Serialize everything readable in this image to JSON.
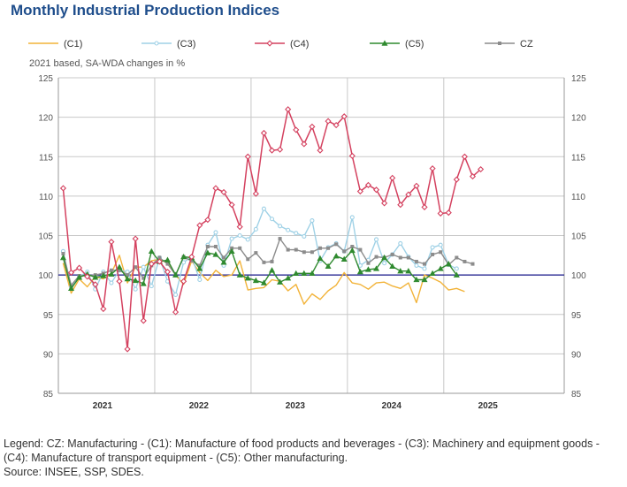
{
  "title": "Monthly Industrial Production Indices",
  "colors": {
    "C1": "#f2b339",
    "C3": "#9fd1e6",
    "C4": "#d4415f",
    "C5": "#2f8a2f",
    "CZ": "#8c8c8c",
    "baseline": "#1a1a8c",
    "grid": "#c8c8c8"
  },
  "footer": {
    "legend_text": "Legend: CZ: Manufacturing - (C1): Manufacture of food products and beverages - (C3): Machinery and equipment goods - (C4): Manufacture of transport equipment - (C5): Other manufacturing.",
    "source_text": "Source: INSEE, SSP, SDES."
  },
  "chart_data": {
    "type": "line",
    "title": "Monthly Industrial Production Indices",
    "subtitle": "2021 based, SA-WDA changes in %",
    "ylim": [
      85,
      125
    ],
    "yticks": [
      85,
      90,
      95,
      100,
      105,
      110,
      115,
      120,
      125
    ],
    "xlim": [
      0,
      63
    ],
    "year_labels": [
      {
        "label": "2021",
        "x": 5.5
      },
      {
        "label": "2022",
        "x": 17.5
      },
      {
        "label": "2023",
        "x": 29.5
      },
      {
        "label": "2024",
        "x": 41.5
      },
      {
        "label": "2025",
        "x": 53.5
      }
    ],
    "year_separators": [
      12,
      24,
      36,
      48
    ],
    "baseline": 100,
    "grid": true,
    "legend_position": "top",
    "series": [
      {
        "key": "C1",
        "name": "(C1)",
        "marker": "none",
        "values": [
          101.5,
          97.7,
          99.5,
          98.5,
          99.8,
          99.5,
          100.2,
          102.5,
          99.0,
          101.0,
          101.0,
          101.8,
          102.0,
          101.5,
          100.0,
          98.8,
          101.8,
          100.3,
          99.3,
          100.6,
          99.8,
          100.0,
          101.8,
          98.1,
          98.3,
          98.4,
          99.4,
          99.2,
          98.0,
          98.8,
          96.3,
          97.6,
          96.9,
          98.0,
          98.7,
          100.3,
          99.0,
          98.8,
          98.2,
          99.0,
          99.1,
          98.6,
          98.3,
          99.0,
          96.5,
          100.0,
          99.6,
          99.1,
          98.1,
          98.3,
          97.9
        ]
      },
      {
        "key": "C3",
        "name": "(C3)",
        "marker": "circle",
        "values": [
          103.0,
          98.5,
          99.8,
          100.4,
          98.2,
          100.4,
          99.0,
          100.6,
          100.4,
          98.2,
          101.0,
          98.6,
          102.2,
          99.2,
          97.5,
          101.6,
          102.3,
          99.4,
          103.8,
          105.4,
          101.2,
          104.6,
          105.0,
          104.5,
          105.8,
          108.4,
          107.1,
          106.2,
          105.7,
          105.3,
          104.9,
          106.9,
          101.8,
          103.5,
          104.0,
          103.0,
          107.3,
          101.2,
          101.9,
          104.5,
          101.5,
          102.6,
          104.0,
          102.3,
          101.2,
          100.8,
          103.5,
          103.8,
          101.3,
          100.8
        ]
      },
      {
        "key": "C4",
        "name": "(C4)",
        "marker": "diamond",
        "values": [
          111.0,
          100.3,
          100.9,
          99.8,
          98.8,
          95.7,
          104.2,
          99.2,
          90.6,
          104.6,
          94.2,
          101.4,
          101.7,
          100.4,
          95.3,
          99.2,
          102.3,
          106.3,
          107.0,
          111.0,
          110.5,
          108.9,
          106.1,
          115.0,
          110.3,
          118.0,
          115.8,
          115.9,
          121.0,
          118.4,
          116.6,
          118.8,
          115.8,
          119.5,
          119.0,
          120.1,
          115.1,
          110.6,
          111.4,
          110.8,
          109.1,
          112.3,
          108.9,
          110.2,
          111.3,
          108.6,
          113.5,
          107.8,
          107.9,
          112.1,
          115.0,
          112.5,
          113.4
        ]
      },
      {
        "key": "C5",
        "name": "(C5)",
        "marker": "triangle",
        "values": [
          102.2,
          98.3,
          99.7,
          100.1,
          99.7,
          99.9,
          100.1,
          101.0,
          99.5,
          99.3,
          98.9,
          103.0,
          101.7,
          101.9,
          100.0,
          102.3,
          102.2,
          100.8,
          102.8,
          102.6,
          101.6,
          103.0,
          100.0,
          99.6,
          99.3,
          99.0,
          100.6,
          99.1,
          99.6,
          100.2,
          100.2,
          100.2,
          102.1,
          101.1,
          102.4,
          102.0,
          103.1,
          100.4,
          100.7,
          100.8,
          102.2,
          101.1,
          100.5,
          100.5,
          99.4,
          99.4,
          100.2,
          100.8,
          101.4,
          100.0
        ]
      },
      {
        "key": "CZ",
        "name": "CZ",
        "marker": "square",
        "values": [
          102.7,
          98.7,
          99.9,
          99.9,
          100.0,
          100.2,
          100.6,
          100.6,
          100.0,
          101.0,
          99.6,
          101.2,
          102.2,
          101.4,
          100.0,
          102.3,
          101.8,
          101.2,
          103.6,
          103.6,
          102.2,
          103.4,
          103.4,
          102.0,
          102.8,
          101.6,
          101.7,
          104.6,
          103.2,
          103.2,
          102.9,
          102.9,
          103.4,
          103.4,
          103.9,
          103.0,
          103.6,
          103.2,
          101.5,
          102.3,
          102.2,
          102.6,
          102.2,
          102.2,
          101.7,
          101.4,
          102.6,
          102.9,
          101.3,
          102.2,
          101.7,
          101.4
        ]
      }
    ]
  }
}
